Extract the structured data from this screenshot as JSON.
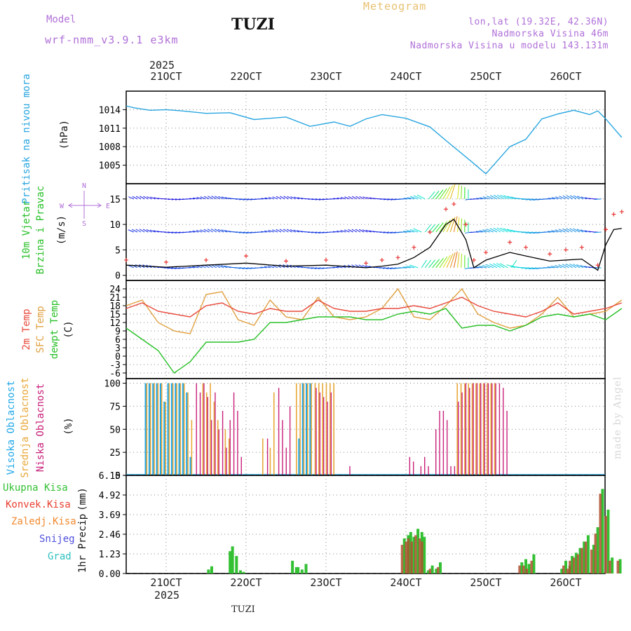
{
  "header": {
    "model_label": "Model",
    "model_run": "wrf-nmm_v3.9.1  e3km",
    "station": "TUZI",
    "product": "Meteogram",
    "lonlat": "lon,lat (19.32E, 42.36N)",
    "altitude": "Nadmorska Visina 46m",
    "model_altitude": "Nadmorska Visina u modelu 143.131m"
  },
  "footer": {
    "station": "TUZI",
    "watermark": "made by Angel"
  },
  "colors": {
    "pressure": "#2aa6e0",
    "wind_speed": "#000000",
    "gust": "#e83030",
    "temp2m": "#e84a3c",
    "sfc": "#e0a040",
    "dew": "#28c028",
    "high": "#22a8e8",
    "mid": "#e8a838",
    "low": "#c8207a",
    "precip_total": "#33c033",
    "precip_conv": "#e84030",
    "precip_strat": "#f08a30",
    "snow": "#5050e0",
    "hail": "#30c0c0",
    "purple": "#b070d8"
  },
  "chart_data": [
    {
      "id": "pressure",
      "type": "line",
      "ylabel": "Pritisak na nivou mora",
      "unit": "(hPa)",
      "yticks": [
        1005,
        1008,
        1011,
        1014
      ],
      "ylim": [
        1002,
        1017
      ],
      "x_dates": [
        "21OCT",
        "22OCT",
        "23OCT",
        "24OCT",
        "25OCT",
        "26OCT"
      ],
      "x_year": "2025",
      "x": [
        0,
        0.1,
        0.3,
        0.5,
        0.7,
        1.0,
        1.3,
        1.6,
        2.0,
        2.3,
        2.6,
        2.8,
        3.0,
        3.2,
        3.5,
        3.8,
        4.0,
        4.3,
        4.5,
        4.8,
        5.0,
        5.2,
        5.4,
        5.6,
        5.8,
        5.9,
        6.0,
        6.1,
        6.2
      ],
      "values": [
        1014.6,
        1014.3,
        1013.9,
        1014.0,
        1013.8,
        1013.4,
        1013.5,
        1012.4,
        1012.8,
        1011.3,
        1012.0,
        1011.3,
        1012.5,
        1013.2,
        1012.6,
        1011.2,
        1009.0,
        1005.8,
        1003.6,
        1008.0,
        1009.2,
        1012.5,
        1013.3,
        1013.9,
        1013.2,
        1013.8,
        1012.5,
        1011.0,
        1009.5
      ]
    },
    {
      "id": "wind",
      "type": "line",
      "ylabel": "10m Vjetar",
      "ylabel2": "Brzina i Pravac",
      "unit": "(m/s)",
      "compass": {
        "n": "N",
        "s": "S",
        "w": "W",
        "e": "E"
      },
      "yticks": [
        0,
        5,
        10,
        15
      ],
      "ylim": [
        -1,
        18
      ],
      "x": [
        0,
        0.5,
        1.0,
        1.5,
        2.0,
        2.5,
        3.0,
        3.2,
        3.4,
        3.6,
        3.8,
        4.0,
        4.1,
        4.25,
        4.35,
        4.5,
        4.8,
        5.0,
        5.3,
        5.5,
        5.7,
        5.9,
        6.0,
        6.1,
        6.2
      ],
      "speed": [
        2,
        1.6,
        2.0,
        2.4,
        1.8,
        2.0,
        1.5,
        1.8,
        2.2,
        3.5,
        5.5,
        10,
        11,
        7,
        1.5,
        3,
        4.5,
        3.8,
        2.8,
        3.0,
        3.2,
        1.0,
        6,
        9,
        9.2
      ],
      "gust": [
        3,
        2.6,
        3.0,
        3.8,
        2.8,
        3.0,
        2.4,
        3.0,
        3.5,
        5.5,
        8.5,
        13,
        14,
        10,
        3,
        4.5,
        6.5,
        5.5,
        4.2,
        5.0,
        5.5,
        2.0,
        9,
        12,
        12.5
      ]
    },
    {
      "id": "temperature",
      "type": "line",
      "ylabel": "2m Temp",
      "ylabel2": "SFC Temp",
      "ylabel3": "dewpt Temp",
      "unit": "(C)",
      "yticks": [
        -6,
        -3,
        0,
        3,
        6,
        9,
        12,
        15,
        18,
        21,
        24
      ],
      "ylim": [
        -8,
        27
      ],
      "x": [
        0,
        0.2,
        0.4,
        0.6,
        0.8,
        1.0,
        1.2,
        1.4,
        1.6,
        1.8,
        2.0,
        2.2,
        2.4,
        2.6,
        2.8,
        3.0,
        3.2,
        3.4,
        3.6,
        3.8,
        4.0,
        4.2,
        4.4,
        4.6,
        4.8,
        5.0,
        5.2,
        5.4,
        5.6,
        5.8,
        6.0,
        6.2
      ],
      "temp2m": [
        17,
        19,
        16,
        15,
        14,
        18,
        19,
        16,
        15,
        17,
        16,
        16,
        20,
        17,
        16,
        16,
        17,
        17,
        18,
        17,
        19,
        21,
        18,
        16,
        15,
        14,
        16,
        19,
        15,
        16,
        17,
        19
      ],
      "sfc_temp": [
        18,
        20,
        12,
        9,
        8,
        22,
        23,
        13,
        11,
        20,
        14,
        13,
        21,
        14,
        13,
        14,
        17,
        24,
        14,
        13,
        18,
        24,
        15,
        12,
        10,
        11,
        15,
        21,
        14,
        15,
        16,
        20
      ],
      "dewpt": [
        10,
        6,
        2,
        -6,
        -2,
        5,
        5,
        5,
        6,
        12,
        12,
        13,
        14,
        14,
        14,
        13,
        13,
        15,
        16,
        15,
        17,
        10,
        11,
        11,
        9,
        11,
        14,
        15,
        14,
        15,
        13,
        17
      ]
    },
    {
      "id": "clouds",
      "type": "bar",
      "ylabel": "Visoka Oblacnost",
      "ylabel2": "Srednja Oblacnost",
      "ylabel3": "Niska Oblacnost",
      "unit": "(%)",
      "yticks": [
        0,
        25,
        50,
        75,
        100
      ],
      "ylim": [
        0,
        105
      ],
      "high_pct": [
        0,
        0,
        0,
        0,
        0,
        100,
        100,
        100,
        100,
        100,
        80,
        100,
        100,
        100,
        100,
        100,
        90,
        20,
        0,
        0,
        0,
        0,
        0,
        0,
        0,
        0,
        0,
        0,
        0,
        0,
        0,
        0,
        0,
        0,
        0,
        0,
        0,
        0,
        0,
        0,
        0,
        0,
        0,
        0,
        0,
        0,
        40,
        100,
        100,
        100,
        0,
        0,
        0,
        0,
        0,
        0,
        0,
        0,
        0,
        0,
        0,
        0,
        0,
        0,
        0,
        0,
        0,
        0,
        0,
        0,
        0,
        0,
        0,
        0,
        0,
        0,
        0,
        0,
        0,
        0,
        0,
        0,
        0,
        0,
        0,
        0,
        0,
        0,
        0,
        0,
        0,
        0,
        0,
        0,
        0,
        0,
        0,
        0,
        0,
        0,
        0,
        0,
        0,
        0,
        0,
        0,
        0,
        0,
        0,
        0,
        0,
        0,
        0,
        0,
        0,
        0,
        0,
        0,
        0,
        0,
        0,
        0,
        0,
        0,
        0,
        0,
        0,
        0
      ],
      "mid_pct": [
        0,
        0,
        0,
        0,
        0,
        100,
        100,
        100,
        100,
        100,
        80,
        100,
        100,
        100,
        100,
        100,
        90,
        60,
        0,
        0,
        100,
        90,
        100,
        80,
        60,
        0,
        50,
        40,
        0,
        0,
        0,
        0,
        0,
        0,
        0,
        0,
        40,
        0,
        30,
        90,
        0,
        0,
        0,
        0,
        0,
        100,
        100,
        100,
        100,
        100,
        100,
        100,
        100,
        100,
        100,
        100,
        0,
        0,
        0,
        0,
        0,
        0,
        0,
        0,
        0,
        0,
        0,
        0,
        0,
        0,
        0,
        0,
        0,
        0,
        0,
        0,
        0,
        0,
        0,
        0,
        0,
        0,
        0,
        0,
        0,
        0,
        0,
        0,
        100,
        100,
        100,
        100,
        100,
        100,
        100,
        100,
        100,
        100,
        100,
        0,
        0,
        0,
        0,
        0,
        0,
        0,
        0,
        0,
        0,
        0,
        0,
        0,
        0,
        0,
        0,
        0,
        0,
        0,
        0,
        0,
        0,
        0,
        0,
        0,
        0,
        0,
        0,
        0,
        0,
        0
      ],
      "low_pct": [
        0,
        0,
        0,
        0,
        0,
        0,
        0,
        0,
        0,
        0,
        0,
        0,
        0,
        0,
        0,
        0,
        0,
        0,
        100,
        90,
        100,
        85,
        60,
        90,
        50,
        70,
        30,
        60,
        90,
        70,
        20,
        0,
        0,
        0,
        0,
        0,
        0,
        40,
        0,
        0,
        95,
        60,
        30,
        75,
        0,
        0,
        0,
        0,
        0,
        0,
        95,
        90,
        85,
        80,
        90,
        0,
        0,
        0,
        0,
        10,
        0,
        0,
        0,
        0,
        0,
        0,
        0,
        0,
        0,
        0,
        0,
        0,
        0,
        0,
        0,
        20,
        15,
        0,
        10,
        20,
        10,
        0,
        50,
        70,
        70,
        60,
        10,
        10,
        80,
        90,
        100,
        95,
        100,
        100,
        100,
        100,
        100,
        100,
        100,
        100,
        95,
        70,
        0,
        0,
        0,
        0,
        0,
        0,
        0,
        0,
        0,
        0,
        0,
        0,
        0,
        0,
        0,
        0,
        0,
        0,
        0,
        0,
        0,
        0,
        0,
        0,
        0,
        0,
        0,
        0,
        0,
        0
      ]
    },
    {
      "id": "precip",
      "type": "bar",
      "ylabel": "1hr Precip",
      "unit": "(mm)",
      "legend": [
        "Ukupna  Kisa",
        "Konvek.Kisa",
        "Zaledj.Kisa",
        "Snijeg",
        "Grad"
      ],
      "yticks": [
        0,
        1.23,
        2.46,
        3.69,
        4.92,
        6.15
      ],
      "ylim": [
        0,
        6.15
      ],
      "bars_x": [
        1.03,
        1.07,
        1.3,
        1.33,
        1.38,
        1.43,
        1.47,
        2.08,
        2.13,
        2.15,
        2.2,
        2.25,
        3.48,
        3.53,
        3.56,
        3.6,
        3.65,
        3.7,
        3.73,
        3.78,
        3.83,
        3.88,
        3.93,
        4.95,
        5.0,
        5.04,
        5.1,
        5.45,
        5.5,
        5.55,
        5.58,
        5.63,
        5.68,
        5.73,
        5.78,
        5.85,
        5.9,
        5.96,
        6.03,
        6.08,
        6.18
      ],
      "bars_total": [
        0.25,
        0.45,
        1.4,
        1.7,
        1.1,
        0.2,
        0.1,
        0.8,
        0.4,
        0.4,
        0.25,
        0.6,
        2.2,
        2.4,
        2.6,
        2.3,
        2.8,
        2.6,
        2.3,
        0.2,
        0.5,
        0.3,
        0.7,
        0.7,
        0.9,
        0.6,
        1.2,
        0.3,
        0.8,
        0.5,
        1.1,
        1.3,
        1.6,
        2.0,
        2.4,
        1.8,
        2.9,
        5.3,
        4.0,
        1.0,
        0.9
      ],
      "bars_conv": [
        0,
        0,
        0,
        0,
        0,
        0,
        0,
        0,
        0,
        0,
        0,
        0,
        1.8,
        2.0,
        2.2,
        2.0,
        2.4,
        2.2,
        2.0,
        0,
        0.3,
        0,
        0.4,
        0.5,
        0.5,
        0.3,
        0.8,
        0,
        0.5,
        0.3,
        0.8,
        1.0,
        1.2,
        1.6,
        2.0,
        1.5,
        2.5,
        5.0,
        3.6,
        0.8,
        0.8
      ]
    }
  ]
}
